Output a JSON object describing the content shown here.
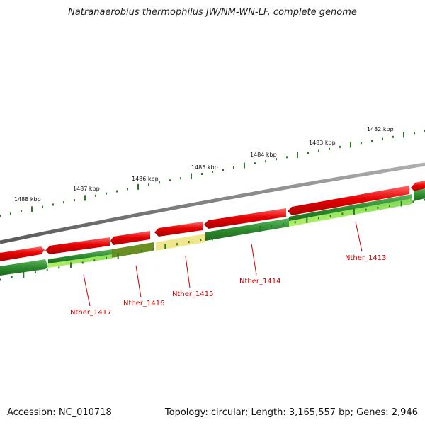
{
  "title": "Natranaerobius thermophilus JW/NM-WN-LF, complete genome",
  "footer": {
    "accession": "Accession: NC_010718",
    "topology": "Topology: circular; Length: 3,165,557 bp; Genes: 2,946"
  },
  "colors": {
    "backbone": "#808080",
    "forward_gene": "#e60000",
    "reverse_gene": "#2e8b2e",
    "reverse_gene_alt": "#9acd32",
    "highlight_gene_1416": "#6b8e23",
    "highlight_gene_1415": "#f0e68c",
    "tick": "#2a7a2a",
    "label": "#cc0000"
  },
  "scale_labels": [
    "1488 kbp",
    "1487 kbp",
    "1486 kbp",
    "1485 kbp",
    "1484 kbp",
    "1483 kbp",
    "1482 kbp"
  ],
  "gene_labels": [
    "Nther_1417",
    "Nther_1416",
    "Nther_1415",
    "Nther_1414",
    "Nther_1413"
  ]
}
